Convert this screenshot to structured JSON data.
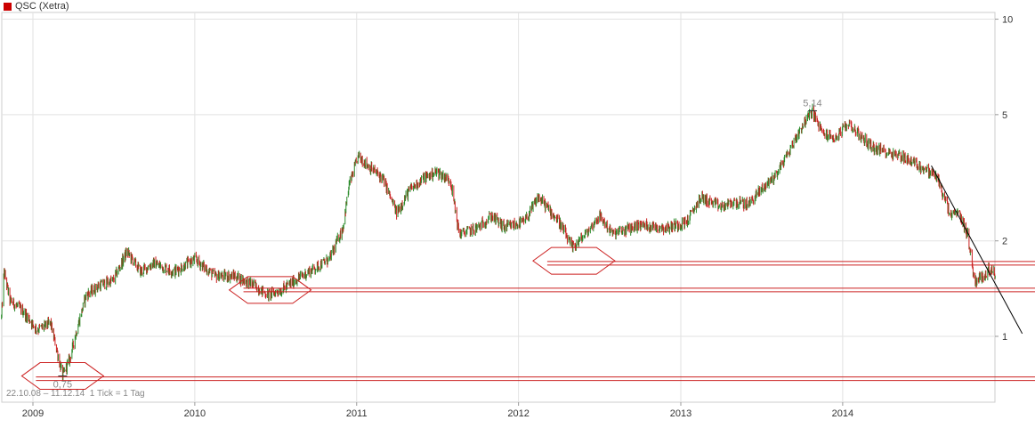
{
  "legend": {
    "label": "QSC (Xetra)",
    "color": "#cc0000"
  },
  "footer": {
    "range": "22.10.08 – 11.12.14",
    "tick": "1 Tick = 1 Tag"
  },
  "chart_data": {
    "type": "candlestick",
    "title": "QSC (Xetra)",
    "yscale": "log",
    "ylim": [
      0.62,
      10.5
    ],
    "y_ticks": [
      {
        "value": 10,
        "label": "10"
      },
      {
        "value": 5,
        "label": "5"
      },
      {
        "value": 2,
        "label": "2"
      },
      {
        "value": 1,
        "label": "1"
      }
    ],
    "x_range": [
      "2008-10-22",
      "2014-12-11"
    ],
    "x_ticks": [
      {
        "date": "2009-01-01",
        "label": "2009"
      },
      {
        "date": "2010-01-01",
        "label": "2010"
      },
      {
        "date": "2011-01-01",
        "label": "2011"
      },
      {
        "date": "2012-01-01",
        "label": "2012"
      },
      {
        "date": "2013-01-01",
        "label": "2013"
      },
      {
        "date": "2014-01-01",
        "label": "2014"
      }
    ],
    "up_color": "#2a8a2a",
    "down_color": "#cc2020",
    "price_path": [
      [
        "2008-10-22",
        1.15
      ],
      [
        "2008-10-28",
        1.6
      ],
      [
        "2008-11-10",
        1.3
      ],
      [
        "2008-12-10",
        1.2
      ],
      [
        "2009-01-10",
        1.05
      ],
      [
        "2009-02-10",
        1.1
      ],
      [
        "2009-03-09",
        0.75
      ],
      [
        "2009-03-25",
        0.85
      ],
      [
        "2009-04-10",
        1.05
      ],
      [
        "2009-05-01",
        1.35
      ],
      [
        "2009-06-01",
        1.45
      ],
      [
        "2009-07-01",
        1.5
      ],
      [
        "2009-08-01",
        1.85
      ],
      [
        "2009-09-01",
        1.6
      ],
      [
        "2009-10-01",
        1.7
      ],
      [
        "2009-11-15",
        1.6
      ],
      [
        "2010-01-01",
        1.75
      ],
      [
        "2010-02-15",
        1.55
      ],
      [
        "2010-04-01",
        1.55
      ],
      [
        "2010-05-15",
        1.45
      ],
      [
        "2010-06-15",
        1.35
      ],
      [
        "2010-07-15",
        1.4
      ],
      [
        "2010-08-15",
        1.5
      ],
      [
        "2010-09-15",
        1.6
      ],
      [
        "2010-11-01",
        1.75
      ],
      [
        "2010-12-01",
        2.2
      ],
      [
        "2010-12-15",
        3.0
      ],
      [
        "2011-01-05",
        3.7
      ],
      [
        "2011-02-01",
        3.4
      ],
      [
        "2011-03-01",
        3.15
      ],
      [
        "2011-04-01",
        2.45
      ],
      [
        "2011-05-01",
        2.9
      ],
      [
        "2011-06-01",
        3.15
      ],
      [
        "2011-07-01",
        3.3
      ],
      [
        "2011-08-01",
        3.1
      ],
      [
        "2011-08-20",
        2.1
      ],
      [
        "2011-10-01",
        2.2
      ],
      [
        "2011-11-01",
        2.4
      ],
      [
        "2011-12-01",
        2.2
      ],
      [
        "2012-01-15",
        2.3
      ],
      [
        "2012-02-15",
        2.75
      ],
      [
        "2012-04-01",
        2.3
      ],
      [
        "2012-05-01",
        1.9
      ],
      [
        "2012-06-01",
        2.1
      ],
      [
        "2012-07-01",
        2.4
      ],
      [
        "2012-08-01",
        2.1
      ],
      [
        "2012-10-01",
        2.25
      ],
      [
        "2012-12-01",
        2.2
      ],
      [
        "2013-01-15",
        2.3
      ],
      [
        "2013-02-15",
        2.75
      ],
      [
        "2013-04-01",
        2.55
      ],
      [
        "2013-05-01",
        2.65
      ],
      [
        "2013-06-01",
        2.6
      ],
      [
        "2013-07-01",
        2.9
      ],
      [
        "2013-08-01",
        3.2
      ],
      [
        "2013-09-01",
        3.8
      ],
      [
        "2013-10-01",
        4.6
      ],
      [
        "2013-10-25",
        5.14
      ],
      [
        "2013-11-15",
        4.4
      ],
      [
        "2013-12-15",
        4.2
      ],
      [
        "2014-01-15",
        4.7
      ],
      [
        "2014-02-15",
        4.2
      ],
      [
        "2014-03-15",
        3.9
      ],
      [
        "2014-04-15",
        3.8
      ],
      [
        "2014-05-15",
        3.7
      ],
      [
        "2014-06-15",
        3.5
      ],
      [
        "2014-07-15",
        3.3
      ],
      [
        "2014-08-01",
        3.2
      ],
      [
        "2014-09-01",
        2.4
      ],
      [
        "2014-09-20",
        2.45
      ],
      [
        "2014-10-10",
        2.1
      ],
      [
        "2014-10-25",
        1.5
      ],
      [
        "2014-11-15",
        1.55
      ],
      [
        "2014-12-01",
        1.65
      ],
      [
        "2014-12-11",
        1.55
      ]
    ],
    "annotations": {
      "high": {
        "date": "2013-10-25",
        "value": 5.14,
        "label": "5,14"
      },
      "low": {
        "date": "2009-03-09",
        "value": 0.75,
        "label": "0,75"
      },
      "support_lines": [
        0.735,
        1.4,
        1.7
      ],
      "hexagons": [
        {
          "date": "2009-03-09",
          "value": 0.75
        },
        {
          "date": "2010-06-20",
          "value": 1.4
        },
        {
          "date": "2012-05-05",
          "value": 1.73
        }
      ],
      "trendline": [
        [
          "2014-07-20",
          3.45
        ],
        [
          "2015-02-10",
          1.02
        ]
      ]
    }
  }
}
